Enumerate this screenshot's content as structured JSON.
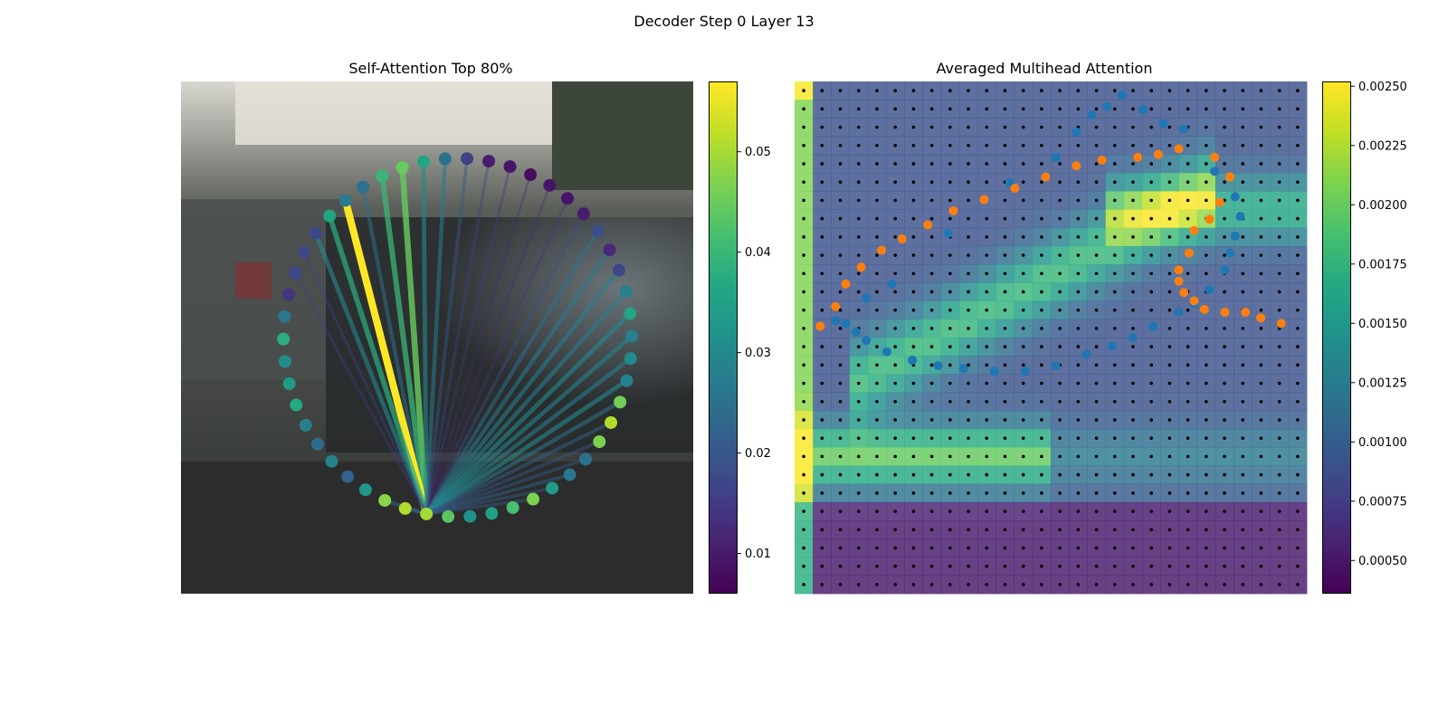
{
  "figure": {
    "suptitle": "Decoder Step 0 Layer 13"
  },
  "chart_data": [
    {
      "type": "network",
      "title": "Self-Attention Top 80%",
      "colormap": "viridis",
      "colorbar": {
        "min": 0.006,
        "max": 0.057,
        "ticks": [
          0.01,
          0.02,
          0.03,
          0.04,
          0.05
        ],
        "tick_labels": [
          "0.01",
          "0.02",
          "0.03",
          "0.04",
          "0.05"
        ]
      },
      "query_index": 0,
      "node_values": [
        0.05,
        0.044,
        0.032,
        0.035,
        0.042,
        0.047,
        0.034,
        0.026,
        0.025,
        0.047,
        0.051,
        0.046,
        0.028,
        0.03,
        0.028,
        0.036,
        0.028,
        0.017,
        0.012,
        0.018,
        0.01,
        0.009,
        0.009,
        0.008,
        0.009,
        0.01,
        0.016,
        0.025,
        0.036,
        0.045,
        0.04,
        0.025,
        0.027,
        0.036,
        0.017,
        0.017,
        0.017,
        0.014,
        0.026,
        0.038,
        0.031,
        0.034,
        0.037,
        0.028,
        0.024,
        0.029,
        0.022,
        0.033,
        0.048,
        0.051
      ],
      "edges_from_query": [
        {
          "to": 29,
          "weight": 0.045
        },
        {
          "to": 30,
          "weight": 0.04
        },
        {
          "to": 31,
          "weight": 0.025
        },
        {
          "to": 32,
          "weight": 0.057
        },
        {
          "to": 33,
          "weight": 0.038
        },
        {
          "to": 34,
          "weight": 0.03
        },
        {
          "to": 28,
          "weight": 0.03
        },
        {
          "to": 27,
          "weight": 0.027
        },
        {
          "to": 26,
          "weight": 0.02
        },
        {
          "to": 25,
          "weight": 0.016
        },
        {
          "to": 24,
          "weight": 0.015
        },
        {
          "to": 23,
          "weight": 0.012
        },
        {
          "to": 22,
          "weight": 0.012
        },
        {
          "to": 21,
          "weight": 0.014
        },
        {
          "to": 20,
          "weight": 0.018
        },
        {
          "to": 19,
          "weight": 0.025
        },
        {
          "to": 18,
          "weight": 0.027
        },
        {
          "to": 17,
          "weight": 0.028
        },
        {
          "to": 16,
          "weight": 0.028
        },
        {
          "to": 15,
          "weight": 0.03
        },
        {
          "to": 14,
          "weight": 0.029
        },
        {
          "to": 13,
          "weight": 0.028
        },
        {
          "to": 12,
          "weight": 0.03
        },
        {
          "to": 11,
          "weight": 0.026
        },
        {
          "to": 10,
          "weight": 0.022
        },
        {
          "to": 9,
          "weight": 0.02
        },
        {
          "to": 8,
          "weight": 0.02
        },
        {
          "to": 7,
          "weight": 0.022
        },
        {
          "to": 6,
          "weight": 0.02
        },
        {
          "to": 5,
          "weight": 0.02
        },
        {
          "to": 49,
          "weight": 0.02
        },
        {
          "to": 48,
          "weight": 0.025
        },
        {
          "to": 35,
          "weight": 0.016
        },
        {
          "to": 36,
          "weight": 0.015
        }
      ]
    },
    {
      "type": "heatmap",
      "title": "Averaged Multihead Attention",
      "colormap": "viridis",
      "grid_size": [
        28,
        28
      ],
      "colorbar": {
        "min": 0.00036,
        "max": 0.00252,
        "ticks": [
          0.0005,
          0.00075,
          0.001,
          0.00125,
          0.0015,
          0.00175,
          0.002,
          0.00225,
          0.0025
        ],
        "tick_labels": [
          "0.00050",
          "0.00075",
          "0.00100",
          "0.00125",
          "0.00150",
          "0.00175",
          "0.00200",
          "0.00225",
          "0.00250"
        ]
      },
      "series": [
        {
          "color": "#1f77b4",
          "points": [
            [
              0.08,
              0.06
            ],
            [
              0.14,
              0.14
            ],
            [
              0.19,
              0.19
            ],
            [
              0.3,
              0.37
            ],
            [
              0.42,
              0.55
            ],
            [
              0.51,
              0.64
            ],
            [
              0.55,
              0.73
            ],
            [
              0.58,
              0.79
            ],
            [
              0.61,
              0.82
            ],
            [
              0.64,
              0.86
            ],
            [
              0.68,
              0.81
            ],
            [
              0.72,
              0.76
            ],
            [
              0.76,
              0.74
            ],
            [
              0.82,
              0.59
            ],
            [
              0.86,
              0.5
            ],
            [
              0.87,
              0.43
            ],
            [
              0.86,
              0.36
            ],
            [
              0.85,
              0.3
            ],
            [
              0.84,
              0.24
            ],
            [
              0.81,
              0.17
            ],
            [
              0.78,
              0.12
            ],
            [
              0.75,
              0.09
            ],
            [
              0.7,
              0.04
            ],
            [
              0.66,
              0.0
            ],
            [
              0.62,
              -0.03
            ],
            [
              0.57,
              -0.06
            ],
            [
              0.51,
              -0.1
            ],
            [
              0.45,
              -0.12
            ],
            [
              0.39,
              -0.12
            ],
            [
              0.33,
              -0.11
            ],
            [
              0.28,
              -0.1
            ],
            [
              0.23,
              -0.08
            ],
            [
              0.18,
              -0.05
            ],
            [
              0.14,
              -0.01
            ],
            [
              0.12,
              0.02
            ],
            [
              0.1,
              0.05
            ],
            [
              0.08,
              0.06
            ]
          ]
        },
        {
          "color": "#ff7f0e",
          "points": [
            [
              0.05,
              0.04
            ],
            [
              0.08,
              0.11
            ],
            [
              0.1,
              0.19
            ],
            [
              0.13,
              0.25
            ],
            [
              0.17,
              0.31
            ],
            [
              0.21,
              0.35
            ],
            [
              0.26,
              0.4
            ],
            [
              0.31,
              0.45
            ],
            [
              0.37,
              0.49
            ],
            [
              0.43,
              0.53
            ],
            [
              0.49,
              0.57
            ],
            [
              0.55,
              0.61
            ],
            [
              0.6,
              0.63
            ],
            [
              0.67,
              0.64
            ],
            [
              0.71,
              0.65
            ],
            [
              0.75,
              0.67
            ],
            [
              0.82,
              0.64
            ],
            [
              0.85,
              0.57
            ],
            [
              0.83,
              0.48
            ],
            [
              0.81,
              0.42
            ],
            [
              0.78,
              0.38
            ],
            [
              0.77,
              0.3
            ],
            [
              0.75,
              0.24
            ],
            [
              0.75,
              0.2
            ],
            [
              0.76,
              0.16
            ],
            [
              0.78,
              0.13
            ],
            [
              0.8,
              0.1
            ],
            [
              0.84,
              0.09
            ],
            [
              0.88,
              0.09
            ],
            [
              0.91,
              0.07
            ],
            [
              0.95,
              0.05
            ]
          ]
        }
      ]
    }
  ],
  "colors": {
    "orange": "#ff7f0e",
    "blue": "#1f77b4"
  }
}
